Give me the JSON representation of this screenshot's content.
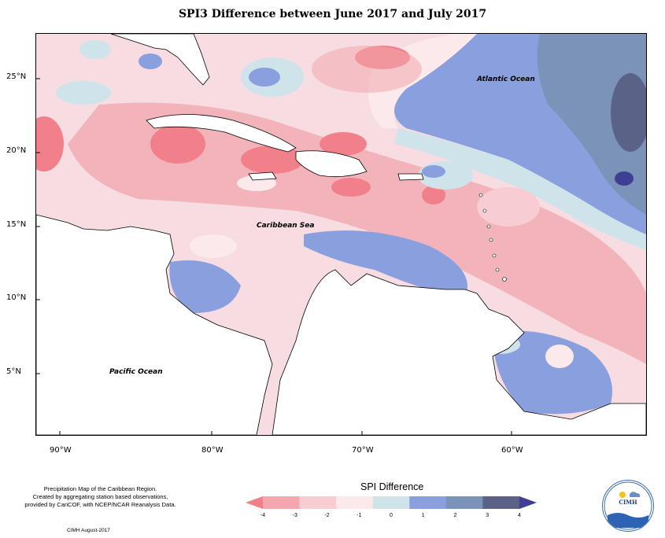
{
  "title": "SPI3 Difference between June 2017 and July 2017",
  "labels": {
    "atlantic": "Atlantic Ocean",
    "caribbean": "Caribbean Sea",
    "pacific": "Pacific Ocean"
  },
  "axes": {
    "latitude": [
      "25°N",
      "20°N",
      "15°N",
      "10°N",
      "5°N"
    ],
    "longitude": [
      "90°W",
      "80°W",
      "70°W",
      "60°W"
    ]
  },
  "footer": {
    "note_line1": "Precipitation Map of the Caribbean Region.",
    "note_line2": "Created by aggregating station based observations,",
    "note_line3": "provided by CariCOF, with NCEP/NCAR Reanalysis Data.",
    "credit": "CIMH August-2017"
  },
  "legend": {
    "title": "SPI Difference",
    "ticks": [
      "-4",
      "-3",
      "-2",
      "-1",
      "0",
      "1",
      "2",
      "3",
      "4"
    ],
    "colors": [
      "#f2808a",
      "#f2a8ae",
      "#f7ccd2",
      "#fbe9ec",
      "#cfe3ea",
      "#8a9fdd",
      "#7b93b8",
      "#5a6288",
      "#3e3f92"
    ]
  },
  "logo": {
    "text": "CIMH"
  }
}
